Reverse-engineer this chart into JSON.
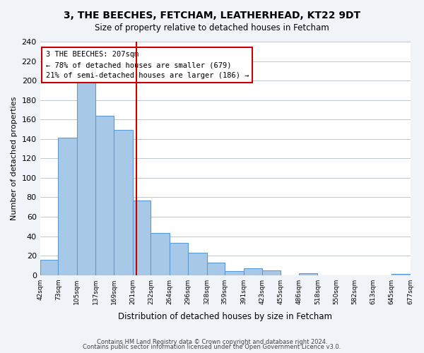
{
  "title": "3, THE BEECHES, FETCHAM, LEATHERHEAD, KT22 9DT",
  "subtitle": "Size of property relative to detached houses in Fetcham",
  "xlabel": "Distribution of detached houses by size in Fetcham",
  "ylabel": "Number of detached properties",
  "bar_color": "#a8c8e8",
  "bar_edge_color": "#5b9bd5",
  "bin_edges": [
    42,
    73,
    105,
    137,
    169,
    201,
    232,
    264,
    296,
    328,
    359,
    391,
    423,
    455,
    486,
    518,
    550,
    582,
    613,
    645,
    677
  ],
  "bin_labels": [
    "42sqm",
    "73sqm",
    "105sqm",
    "137sqm",
    "169sqm",
    "201sqm",
    "232sqm",
    "264sqm",
    "296sqm",
    "328sqm",
    "359sqm",
    "391sqm",
    "423sqm",
    "455sqm",
    "486sqm",
    "518sqm",
    "550sqm",
    "582sqm",
    "613sqm",
    "645sqm",
    "677sqm"
  ],
  "bar_heights": [
    16,
    141,
    200,
    164,
    149,
    77,
    43,
    33,
    23,
    13,
    4,
    7,
    5,
    0,
    2,
    0,
    0,
    0,
    0,
    1
  ],
  "vline_x": 207,
  "vline_color": "#cc0000",
  "annotation_title": "3 THE BEECHES: 207sqm",
  "annotation_line1": "← 78% of detached houses are smaller (679)",
  "annotation_line2": "21% of semi-detached houses are larger (186) →",
  "annotation_box_color": "#ffffff",
  "annotation_box_edge": "#cc0000",
  "ylim": [
    0,
    240
  ],
  "yticks": [
    0,
    20,
    40,
    60,
    80,
    100,
    120,
    140,
    160,
    180,
    200,
    220,
    240
  ],
  "footer_line1": "Contains HM Land Registry data © Crown copyright and database right 2024.",
  "footer_line2": "Contains public sector information licensed under the Open Government Licence v3.0.",
  "bg_color": "#f0f4f8",
  "plot_bg_color": "#ffffff"
}
